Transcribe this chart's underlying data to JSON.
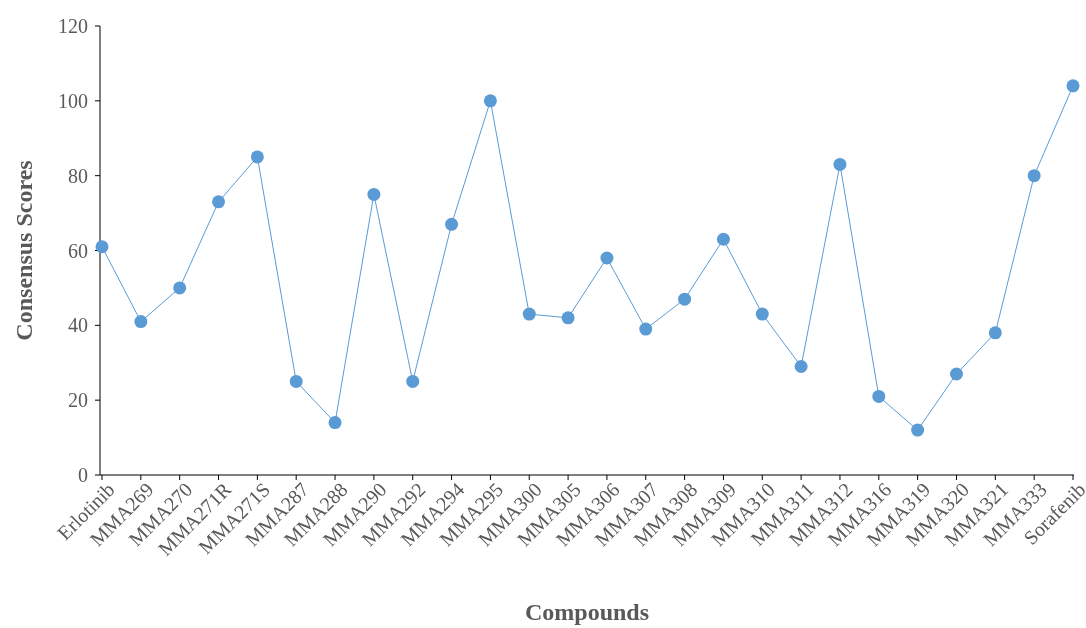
{
  "chart_data": {
    "type": "line",
    "xlabel": "Compounds",
    "ylabel": "Consensus Scores",
    "categories": [
      "Erlotinib",
      "MMA269",
      "MMA270",
      "MMA271R",
      "MMA271S",
      "MMA287",
      "MMA288",
      "MMA290",
      "MMA292",
      "MMA294",
      "MMA295",
      "MMA300",
      "MMA305",
      "MMA306",
      "MMA307",
      "MMA308",
      "MMA309",
      "MMA310",
      "MMA311",
      "MMA312",
      "MMA316",
      "MMA319",
      "MMA320",
      "MMA321",
      "MMA333",
      "Sorafenib"
    ],
    "series": [
      {
        "color": "#5b9bd5",
        "values": [
          61,
          41,
          50,
          73,
          85,
          25,
          14,
          75,
          25,
          67,
          100,
          43,
          42,
          58,
          39,
          47,
          63,
          43,
          29,
          83,
          21,
          12,
          27,
          38,
          80,
          104
        ]
      }
    ],
    "ylim": [
      0,
      120
    ],
    "yticks": [
      0,
      20,
      40,
      60,
      80,
      100,
      120
    ],
    "grid": false,
    "marker": "circle",
    "line_style": "solid"
  }
}
